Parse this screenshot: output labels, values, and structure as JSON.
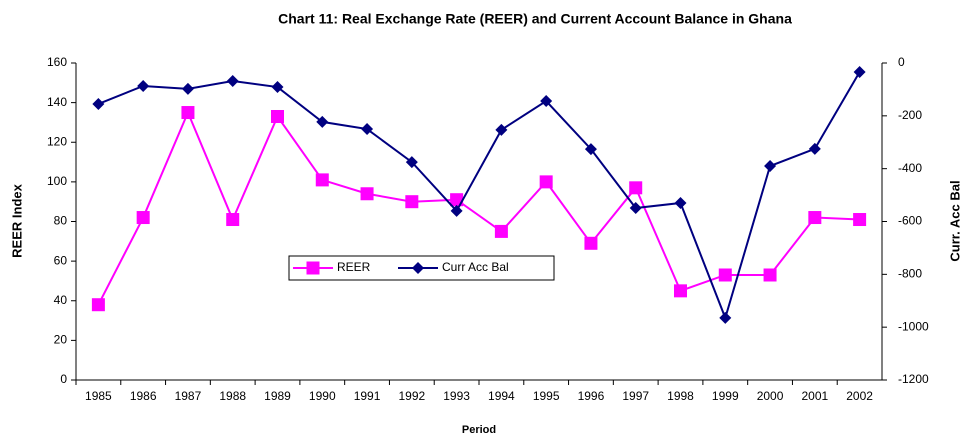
{
  "chart_data": {
    "type": "line",
    "title": "Chart 11: Real Exchange Rate (REER) and Current Account Balance in Ghana",
    "x_label": "Period",
    "y_label": "REER Index",
    "y2_label": "Curr. Acc Bal",
    "categories": [
      "1985",
      "1986",
      "1987",
      "1988",
      "1989",
      "1990",
      "1991",
      "1992",
      "1993",
      "1994",
      "1995",
      "1996",
      "1997",
      "1998",
      "1999",
      "2000",
      "2001",
      "2002"
    ],
    "series": [
      {
        "name": "REER",
        "color": "#ff00ff",
        "marker": "square",
        "values": [
          38,
          82,
          135,
          81,
          133,
          101,
          94,
          90,
          91,
          75,
          100,
          69,
          97,
          45,
          53,
          53,
          82,
          81
        ]
      },
      {
        "name": "Curr Acc Bal",
        "color": "#000080",
        "marker": "diamond",
        "axis": "y2",
        "values": [
          -155,
          -87,
          -98,
          -68,
          -91,
          -223,
          -250,
          -375,
          -560,
          -253,
          -144,
          -326,
          -549,
          -530,
          -965,
          -390,
          -325,
          -34
        ]
      }
    ],
    "ylim": [
      0,
      160
    ],
    "yticks": [
      0,
      20,
      40,
      60,
      80,
      100,
      120,
      140,
      160
    ],
    "y2lim": [
      -1200,
      0
    ],
    "y2ticks": [
      -1200,
      -1000,
      -800,
      -600,
      -400,
      -200,
      0
    ],
    "grid": false
  }
}
